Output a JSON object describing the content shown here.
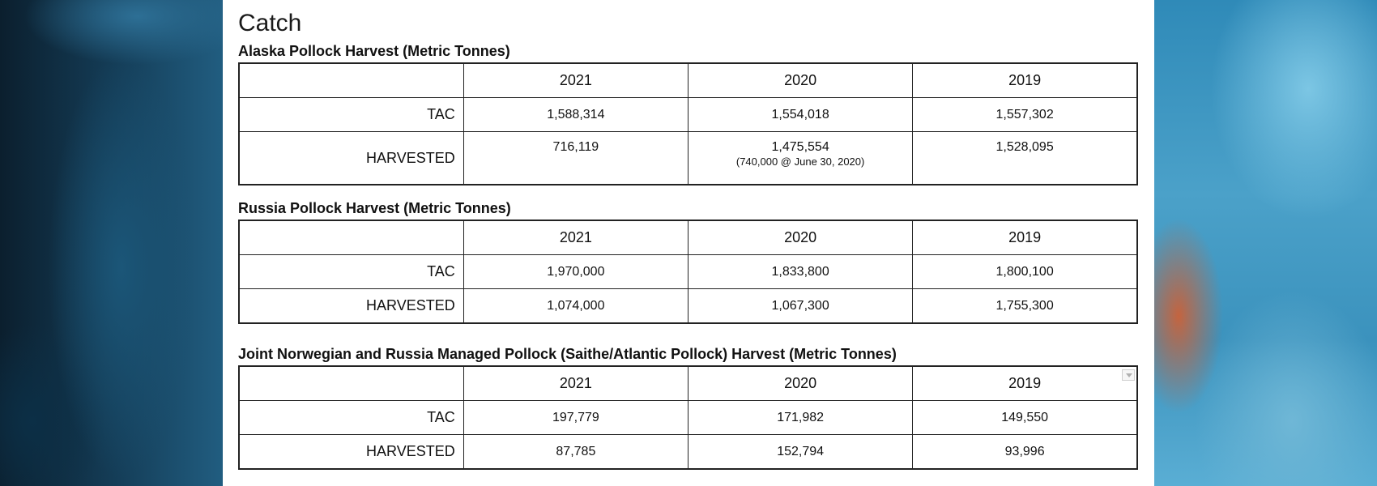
{
  "page": {
    "title": "Catch"
  },
  "tables": [
    {
      "title": "Alaska Pollock Harvest (Metric Tonnes)",
      "years": [
        "2021",
        "2020",
        "2019"
      ],
      "rows": [
        {
          "label": "TAC",
          "values": [
            "1,588,314",
            "1,554,018",
            "1,557,302"
          ]
        },
        {
          "label": "HARVESTED",
          "values": [
            "716,119",
            "1,475,554",
            "1,528,095"
          ],
          "note": "(740,000 @ June 30, 2020)"
        }
      ]
    },
    {
      "title": "Russia Pollock Harvest (Metric Tonnes)",
      "years": [
        "2021",
        "2020",
        "2019"
      ],
      "rows": [
        {
          "label": "TAC",
          "values": [
            "1,970,000",
            "1,833,800",
            "1,800,100"
          ]
        },
        {
          "label": "HARVESTED",
          "values": [
            "1,074,000",
            "1,067,300",
            "1,755,300"
          ]
        }
      ]
    },
    {
      "title": "Joint Norwegian and Russia Managed Pollock (Saithe/Atlantic Pollock) Harvest (Metric Tonnes)",
      "years": [
        "2021",
        "2020",
        "2019"
      ],
      "rows": [
        {
          "label": "TAC",
          "values": [
            "197,779",
            "171,982",
            "149,550"
          ]
        },
        {
          "label": "HARVESTED",
          "values": [
            "87,785",
            "152,794",
            "93,996"
          ]
        }
      ]
    }
  ],
  "icons": {
    "table_menu": "chevron-down-icon"
  }
}
